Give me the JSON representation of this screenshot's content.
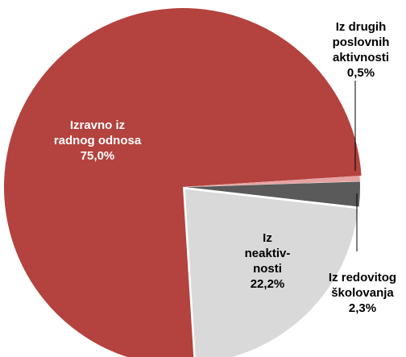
{
  "chart_data": {
    "type": "pie",
    "categories": [
      "Iz drugih poslovnih aktivnosti",
      "Iz redovitog školovanja",
      "Iz neaktiv-nosti",
      "Izravno iz radnog odnosa"
    ],
    "values": [
      0.5,
      2.3,
      22.2,
      75.0
    ],
    "value_labels": [
      "0,5%",
      "2,3%",
      "22,2%",
      "75,0%"
    ],
    "colors": [
      "#e6a3a1",
      "#5a5a5a",
      "#d9d9d9",
      "#b4423e"
    ]
  }
}
